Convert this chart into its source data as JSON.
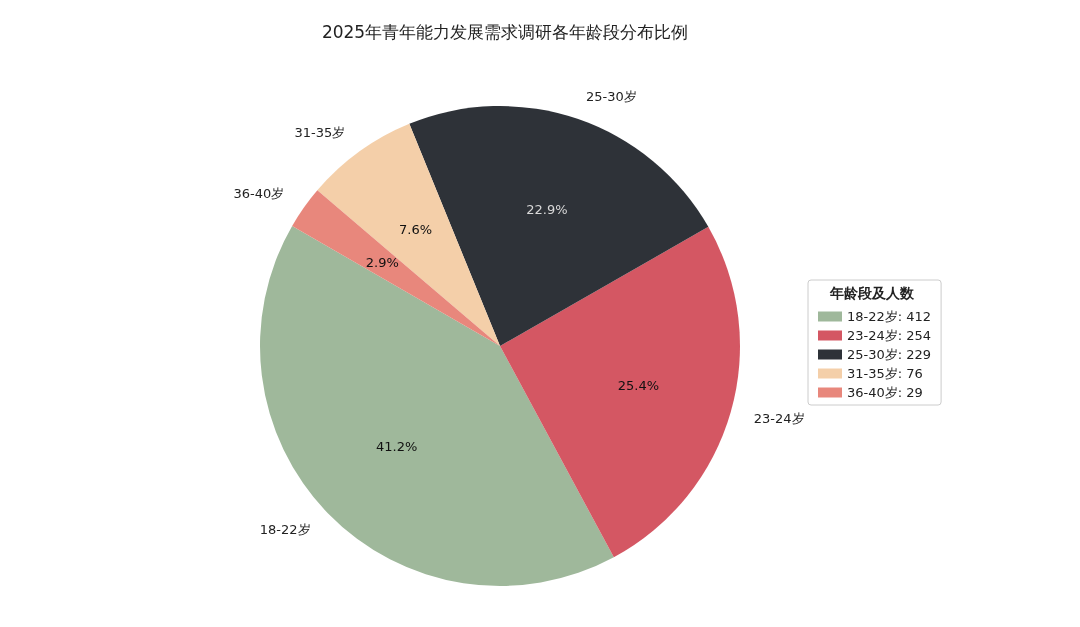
{
  "chart_data": {
    "type": "pie",
    "title": "2025年青年能力发展需求调研各年龄段分布比例",
    "legend_title": "年龄段及人数",
    "categories": [
      "18-22岁",
      "23-24岁",
      "25-30岁",
      "31-35岁",
      "36-40岁"
    ],
    "values": [
      41.2,
      25.4,
      22.9,
      7.6,
      2.9
    ],
    "annotations": [
      ": 412",
      ": 254",
      ": 229",
      ": 76",
      ": 29"
    ],
    "colors": [
      "#9fb89b",
      "#d45763",
      "#2e3238",
      "#f4cfa9",
      "#e8877c"
    ],
    "value_labels": [
      "41.2%",
      "25.4%",
      "22.9%",
      "7.6%",
      "2.9%"
    ],
    "legend": "right"
  }
}
